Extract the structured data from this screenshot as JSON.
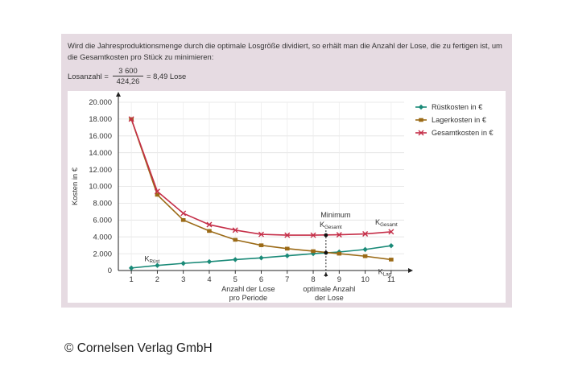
{
  "intro": {
    "text": "Wird die Jahresproduktionsmenge durch die optimale Losgröße dividiert, so erhält man die Anzahl der Lose, die zu fertigen ist, um die Gesamtkosten pro Stück zu minimieren:"
  },
  "formula": {
    "lhs": "Losanzahl =",
    "numerator": "3 600",
    "denominator": "424,26",
    "rhs": "= 8,49 Lose"
  },
  "chart_data": {
    "type": "line",
    "ylabel": "Kosten in €",
    "ylim": [
      0,
      20000
    ],
    "yticks": [
      0,
      2000,
      4000,
      6000,
      8000,
      10000,
      12000,
      14000,
      16000,
      18000,
      20000
    ],
    "ytick_labels": [
      "0",
      "2.000",
      "4.000",
      "6.000",
      "8.000",
      "10.000",
      "12.000",
      "14.000",
      "16.000",
      "18.000",
      "20.000"
    ],
    "x": [
      1,
      2,
      3,
      4,
      5,
      6,
      7,
      8,
      9,
      10,
      11
    ],
    "xlim": [
      0.5,
      11.5
    ],
    "xlabel": "Anzahl der Lose\npro Periode",
    "legend_position": "top-right",
    "series": [
      {
        "name": "Rüstkosten in €",
        "color": "#1a8a78",
        "marker": "diamond",
        "values": [
          300,
          600,
          850,
          1050,
          1300,
          1500,
          1750,
          2000,
          2200,
          2500,
          2950
        ]
      },
      {
        "name": "Lagerkosten in €",
        "color": "#9b6a16",
        "marker": "square",
        "values": [
          18000,
          9000,
          6000,
          4700,
          3650,
          3000,
          2600,
          2300,
          2000,
          1700,
          1300
        ]
      },
      {
        "name": "Gesamtkosten in €",
        "color": "#c52e48",
        "marker": "cross",
        "values": [
          18000,
          9400,
          6800,
          5450,
          4800,
          4300,
          4200,
          4200,
          4250,
          4350,
          4600
        ]
      }
    ],
    "annotations": {
      "optimum_x": 8.49,
      "optimum_total": 4200,
      "optimum_cross": 2100,
      "optimum_label": "optimale Anzahl\nder Lose",
      "minimum_label": "Minimum",
      "k_symbol": "K",
      "k_gesamt_sub": "Gesamt",
      "k_ruest_sub": "Rüst",
      "k_lag_sub": "Lag"
    }
  },
  "copyright": "© Cornelsen Verlag GmbH"
}
